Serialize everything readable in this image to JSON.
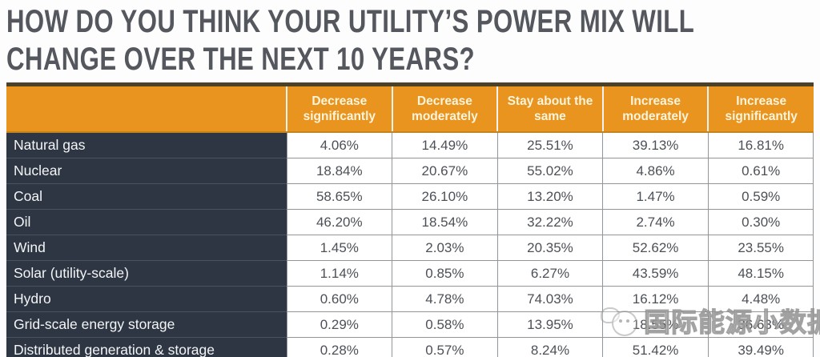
{
  "header": {
    "title_lines": [
      "HOW DO YOU THINK YOUR UTILITY’S POWER MIX WILL",
      "CHANGE OVER THE NEXT 10 YEARS?"
    ]
  },
  "chart_data": {
    "type": "table",
    "title": "HOW DO YOU THINK YOUR UTILITY’S POWER MIX WILL CHANGE OVER THE NEXT 10 YEARS?",
    "columns": [
      "Decrease significantly",
      "Decrease moderately",
      "Stay about the same",
      "Increase moderately",
      "Increase significantly"
    ],
    "rows": [
      {
        "label": "Natural gas",
        "values": [
          "4.06%",
          "14.49%",
          "25.51%",
          "39.13%",
          "16.81%"
        ]
      },
      {
        "label": "Nuclear",
        "values": [
          "18.84%",
          "20.67%",
          "55.02%",
          "4.86%",
          "0.61%"
        ]
      },
      {
        "label": "Coal",
        "values": [
          "58.65%",
          "26.10%",
          "13.20%",
          "1.47%",
          "0.59%"
        ]
      },
      {
        "label": "Oil",
        "values": [
          "46.20%",
          "18.54%",
          "32.22%",
          "2.74%",
          "0.30%"
        ]
      },
      {
        "label": "Wind",
        "values": [
          "1.45%",
          "2.03%",
          "20.35%",
          "52.62%",
          "23.55%"
        ]
      },
      {
        "label": "Solar (utility-scale)",
        "values": [
          "1.14%",
          "0.85%",
          "6.27%",
          "43.59%",
          "48.15%"
        ]
      },
      {
        "label": "Hydro",
        "values": [
          "0.60%",
          "4.78%",
          "74.03%",
          "16.12%",
          "4.48%"
        ]
      },
      {
        "label": "Grid-scale energy storage",
        "values": [
          "0.29%",
          "0.58%",
          "13.95%",
          "18.55%",
          "36.63%"
        ]
      },
      {
        "label": "Distributed generation & storage",
        "values": [
          "0.28%",
          "0.57%",
          "8.24%",
          "51.42%",
          "39.49%"
        ]
      }
    ],
    "layout": {
      "legend_position": "none",
      "grid": true,
      "header_bg": "#E8941E",
      "label_bg": "#2D3642",
      "top_bar": "#4C4026",
      "grid_line": "#8F979D",
      "value_text": "#4C5157",
      "header_text": "#FDF4DC",
      "title_text": "#54585E"
    }
  },
  "watermark": {
    "text": "国际能源小数据",
    "icon": "cartoon-face-icon"
  }
}
